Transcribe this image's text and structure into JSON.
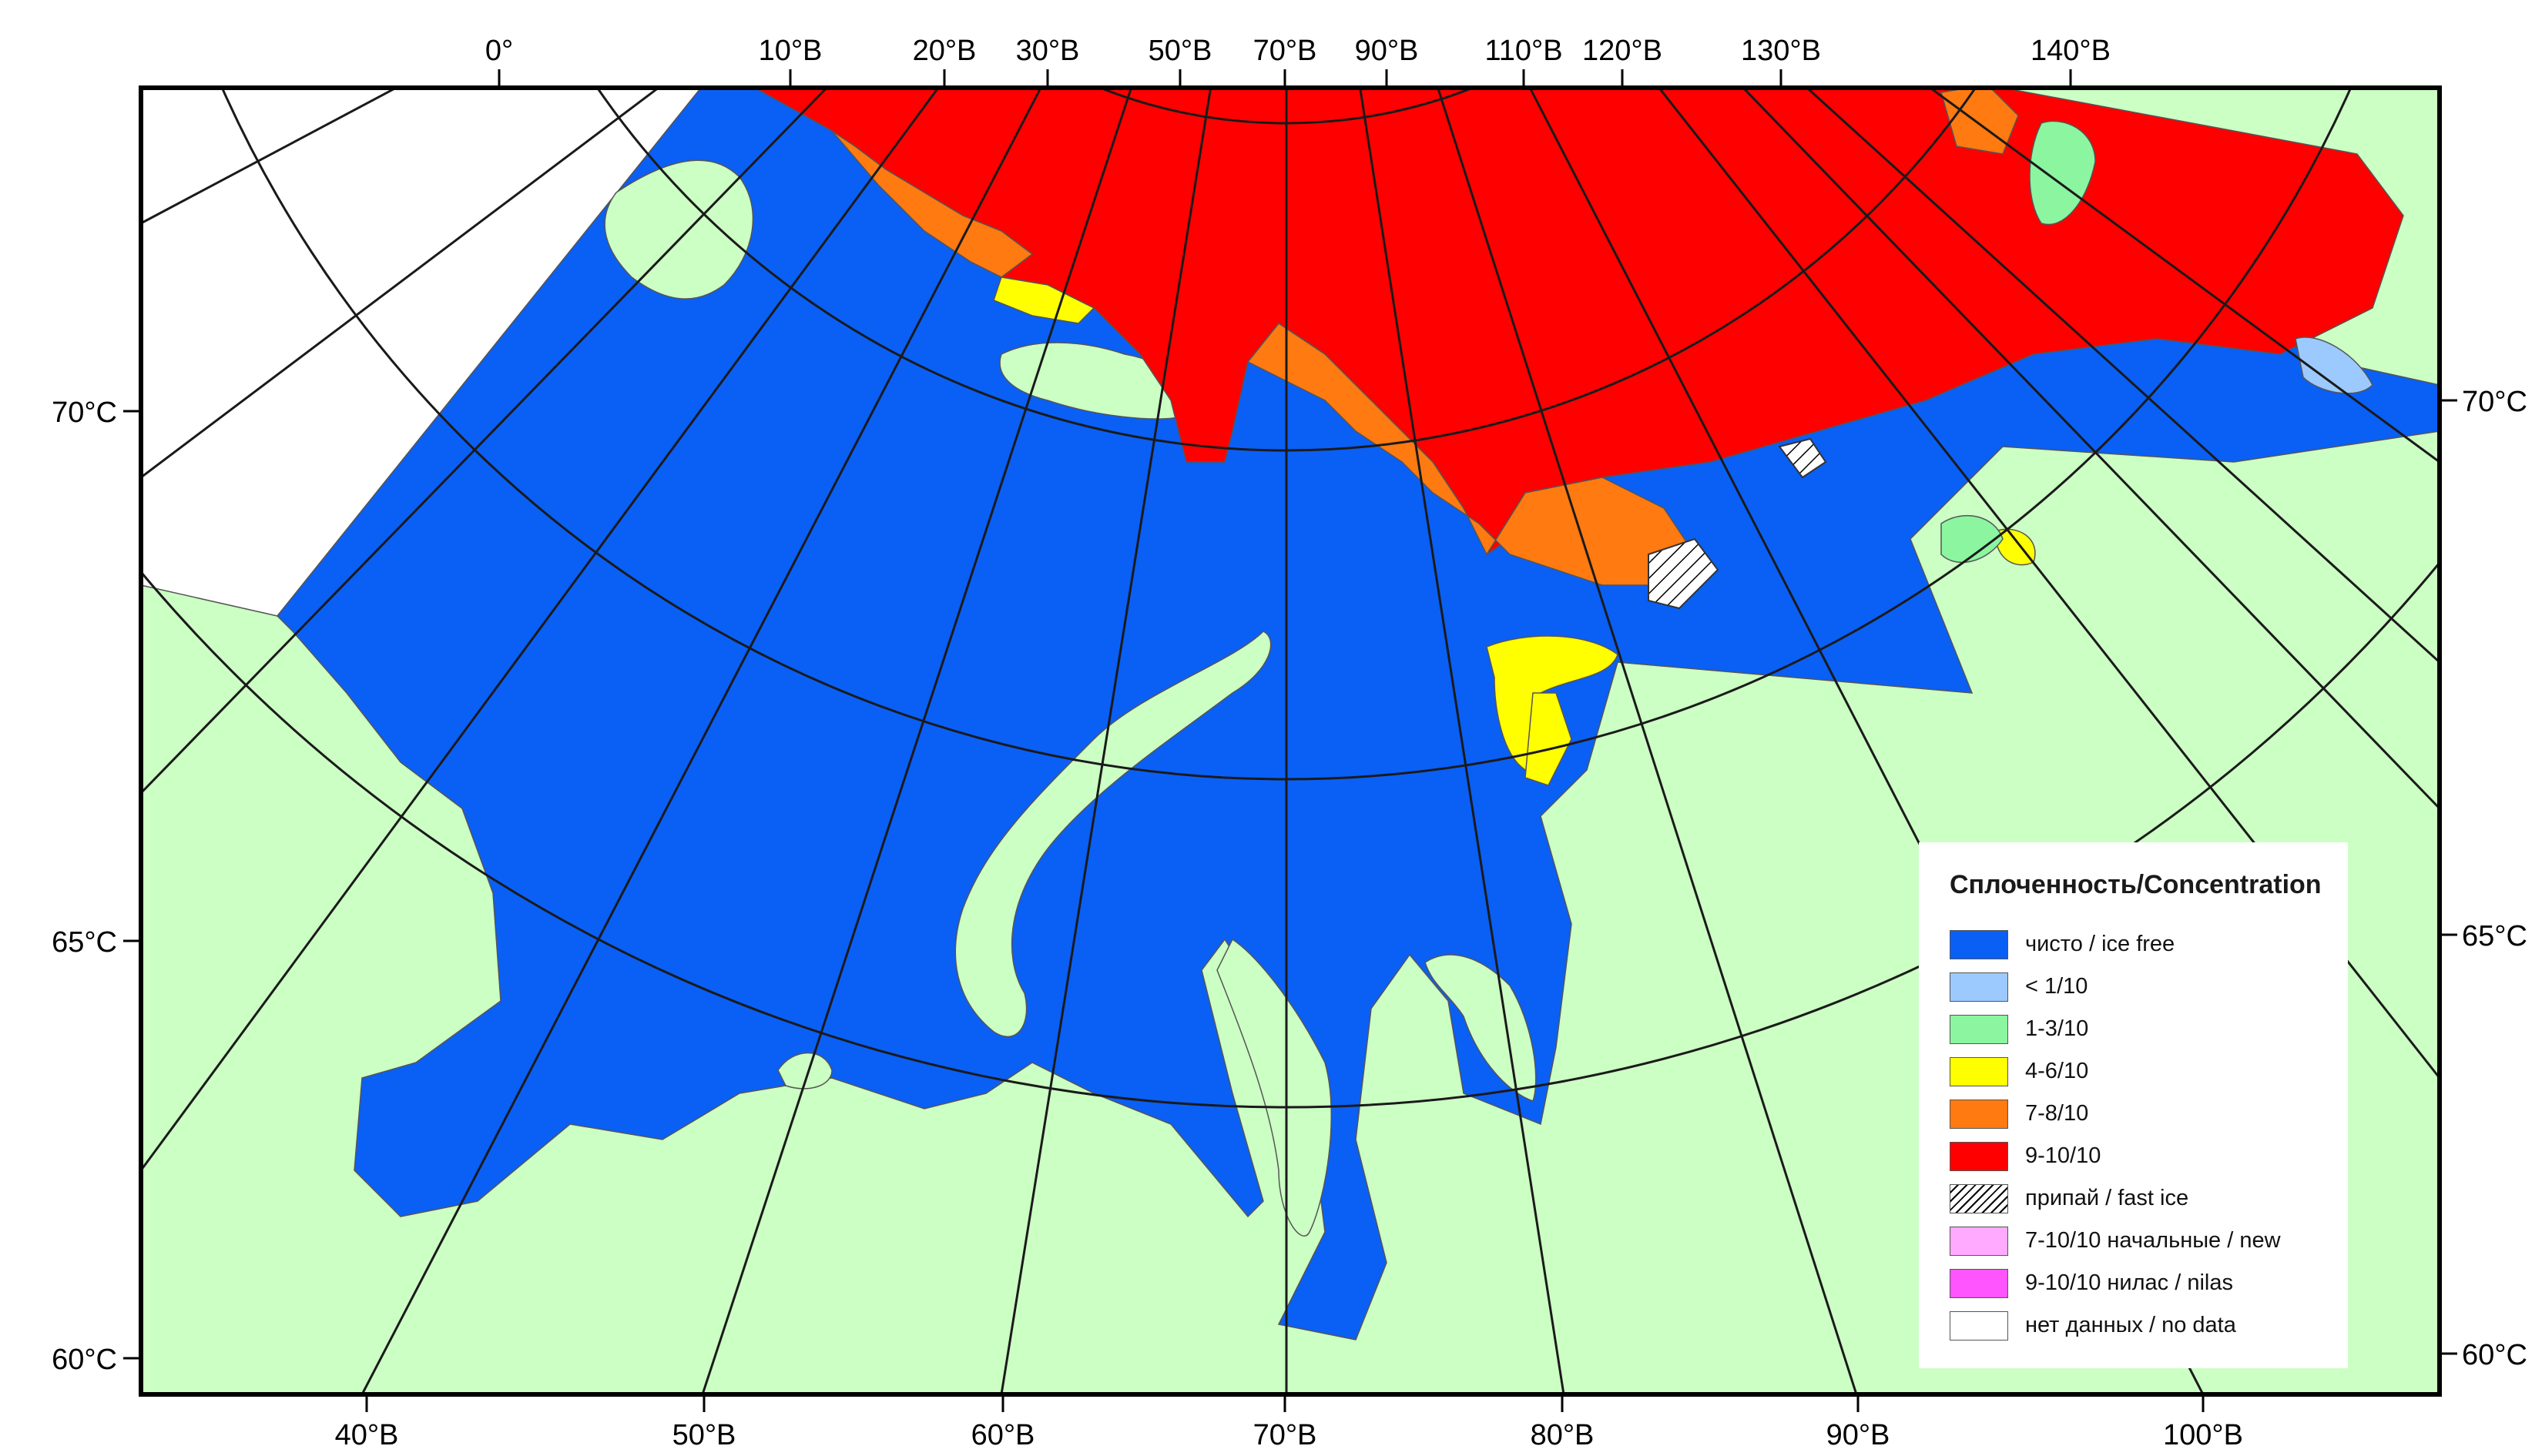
{
  "map": {
    "colors": {
      "land": "#ccffc4",
      "water": "#0a5ff5",
      "no_data": "#ffffff",
      "ice_1_3": "#8cf5a0",
      "ice_4_6": "#ffff00",
      "ice_7_8": "#ff7a10",
      "ice_9_10": "#ff0000",
      "lt_1_10": "#9ccaff",
      "graticule": "#1a1a1a"
    },
    "top_longitude_labels": [
      "0°",
      "10°В",
      "20°В",
      "30°В",
      "50°В",
      "70°В",
      "90°В",
      "110°В",
      "120°В",
      "130°В",
      "140°В"
    ],
    "bottom_longitude_labels": [
      "40°В",
      "50°В",
      "60°В",
      "70°В",
      "80°В",
      "90°В",
      "100°В"
    ],
    "left_latitude_labels": [
      "70°С",
      "65°С",
      "60°С"
    ],
    "right_latitude_labels": [
      "70°С",
      "65°С",
      "60°С"
    ]
  },
  "legend": {
    "title": "Сплоченность/Concentration",
    "items": [
      {
        "label": "чисто / ice free",
        "color": "#0a5ff5",
        "pattern": "solid"
      },
      {
        "label": "< 1/10",
        "color": "#9ccaff",
        "pattern": "solid"
      },
      {
        "label": "1-3/10",
        "color": "#8cf5a0",
        "pattern": "solid"
      },
      {
        "label": "4-6/10",
        "color": "#ffff00",
        "pattern": "solid"
      },
      {
        "label": "7-8/10",
        "color": "#ff7a10",
        "pattern": "solid"
      },
      {
        "label": "9-10/10",
        "color": "#ff0000",
        "pattern": "solid"
      },
      {
        "label": "припай / fast ice",
        "color": "#ffffff",
        "pattern": "hatch"
      },
      {
        "label": "7-10/10 начальные / new",
        "color": "#ffaaff",
        "pattern": "solid"
      },
      {
        "label": "9-10/10 нилас / nilas",
        "color": "#ff55ff",
        "pattern": "solid"
      },
      {
        "label": "нет данных / no data",
        "color": "#ffffff",
        "pattern": "solid"
      }
    ]
  }
}
